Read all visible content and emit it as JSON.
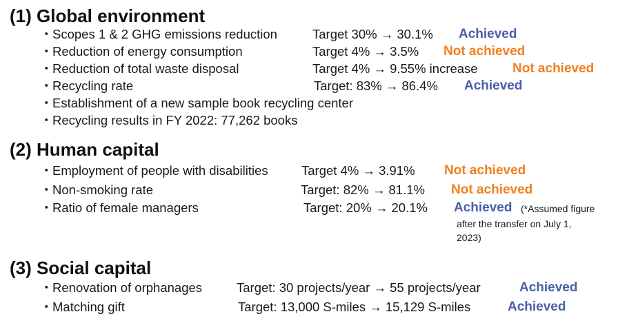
{
  "sections": [
    {
      "heading": "(1) Global environment",
      "items": [
        {
          "label": "Scopes 1 & 2 GHG emissions reduction",
          "target": "Target 30% → 30.1%",
          "status": "Achieved",
          "status_kind": "achieved"
        },
        {
          "label": "Reduction of energy consumption",
          "target": "Target 4% → 3.5%",
          "status": "Not achieved",
          "status_kind": "not_achieved"
        },
        {
          "label": "Reduction of total waste disposal",
          "target": "Target 4% → 9.55% increase",
          "status": "Not achieved",
          "status_kind": "not_achieved"
        },
        {
          "label": "Recycling rate",
          "target": "Target: 83% → 86.4%",
          "status": "Achieved",
          "status_kind": "achieved"
        },
        {
          "label": "Establishment of a new sample book recycling center"
        },
        {
          "label": "Recycling results in FY 2022: 77,262 books"
        }
      ]
    },
    {
      "heading": "(2) Human capital",
      "items": [
        {
          "label": "Employment of people with disabilities",
          "target": "Target 4% → 3.91%",
          "status": "Not achieved",
          "status_kind": "not_achieved"
        },
        {
          "label": "Non-smoking rate",
          "target": "Target: 82% → 81.1%",
          "status": "Not achieved",
          "status_kind": "not_achieved"
        },
        {
          "label": "Ratio of female managers",
          "target": "Target: 20% → 20.1%",
          "status": "Achieved",
          "status_kind": "achieved",
          "note": [
            "(*Assumed figure",
            "after the transfer on July 1,",
            "2023)"
          ]
        }
      ]
    },
    {
      "heading": "(3) Social capital",
      "items": [
        {
          "label": "Renovation of orphanages",
          "target": "Target: 30 projects/year → 55 projects/year",
          "status": "Achieved",
          "status_kind": "achieved"
        },
        {
          "label": "Matching gift",
          "target": "Target: 13,000 S-miles → 15,129 S-miles",
          "status": "Achieved",
          "status_kind": "achieved"
        }
      ]
    }
  ],
  "bullet_glyph": "・",
  "colors": {
    "achieved": "#4a5ea8",
    "not_achieved": "#f0801e"
  }
}
